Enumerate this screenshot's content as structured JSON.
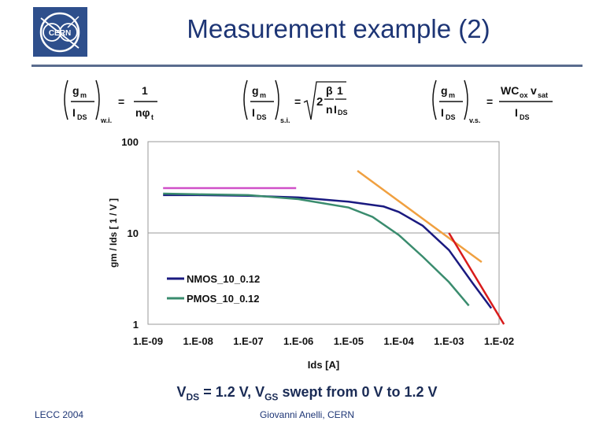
{
  "slide": {
    "title": "Measurement example (2)",
    "caption_vds": "DS",
    "caption_mid": " = 1.2 V, V",
    "caption_vgs": "GS",
    "caption_end": " swept from 0 V to 1.2 V",
    "caption_v": "V",
    "footer_left": "LECC 2004",
    "footer_center": "Giovanni Anelli, CERN",
    "logo_text": "CERN"
  },
  "formulas": {
    "wi": {
      "lhs_num": "g",
      "lhs_num_sub": "m",
      "lhs_den": "I",
      "lhs_den_sub": "DS",
      "region": "w.i.",
      "eq": "=",
      "rhs_num": "1",
      "rhs_den": "nφ",
      "rhs_den_sub": "t"
    },
    "si": {
      "lhs_num": "g",
      "lhs_num_sub": "m",
      "lhs_den": "I",
      "lhs_den_sub": "DS",
      "region": "s.i.",
      "eq": "=",
      "root_2": "2",
      "root_beta": "β",
      "root_n": "n",
      "root_one": "1",
      "root_ids": "I",
      "root_ids_sub": "DS"
    },
    "vs": {
      "lhs_num": "g",
      "lhs_num_sub": "m",
      "lhs_den": "I",
      "lhs_den_sub": "DS",
      "region": "v.s.",
      "eq": "=",
      "rhs_num": "WC",
      "rhs_num_sub1": "ox",
      "rhs_num_v": "v",
      "rhs_num_sub2": "sat",
      "rhs_den": "I",
      "rhs_den_sub": "DS"
    }
  },
  "chart_data": {
    "type": "line",
    "x_scale": "log",
    "y_scale": "log",
    "xlim": [
      1e-09,
      0.01
    ],
    "ylim": [
      1,
      100
    ],
    "x_tick_labels": [
      "1.E-09",
      "1.E-08",
      "1.E-07",
      "1.E-06",
      "1.E-05",
      "1.E-04",
      "1.E-03",
      "1.E-02"
    ],
    "y_tick_labels": [
      "1",
      "10",
      "100"
    ],
    "xlabel": "Ids [A]",
    "ylabel": "gm / Ids  [ 1 / V ]",
    "grid": "horizontal",
    "legend_position": "bottom-left",
    "series": [
      {
        "name": "NMOS_10_0.12",
        "color": "#1a1a80",
        "x": [
          2e-09,
          1e-08,
          1e-07,
          1e-06,
          1e-05,
          5e-05,
          0.0001,
          0.0003,
          0.001,
          0.003,
          0.007
        ],
        "y": [
          26,
          26,
          25.5,
          24.5,
          22,
          19.5,
          17,
          12,
          6.5,
          2.8,
          1.5
        ]
      },
      {
        "name": "PMOS_10_0.12",
        "color": "#3a8c6e",
        "x": [
          2e-09,
          1e-08,
          1e-07,
          1e-06,
          1e-05,
          3e-05,
          0.0001,
          0.0003,
          0.001,
          0.0025
        ],
        "y": [
          27,
          26.5,
          26,
          23.5,
          19,
          15,
          9.5,
          5.5,
          2.9,
          1.6
        ]
      }
    ],
    "asymptotes": [
      {
        "label": "w.i.",
        "color": "#d050c8",
        "x": [
          2e-09,
          9e-07
        ],
        "y": [
          31,
          31
        ]
      },
      {
        "label": "s.i.",
        "color": "#f0a040",
        "x": [
          1.5e-05,
          0.0045
        ],
        "y": [
          48,
          4.8
        ]
      },
      {
        "label": "v.s.",
        "color": "#d81b1b",
        "x": [
          0.001,
          0.0125
        ],
        "y": [
          10,
          1
        ]
      }
    ]
  }
}
